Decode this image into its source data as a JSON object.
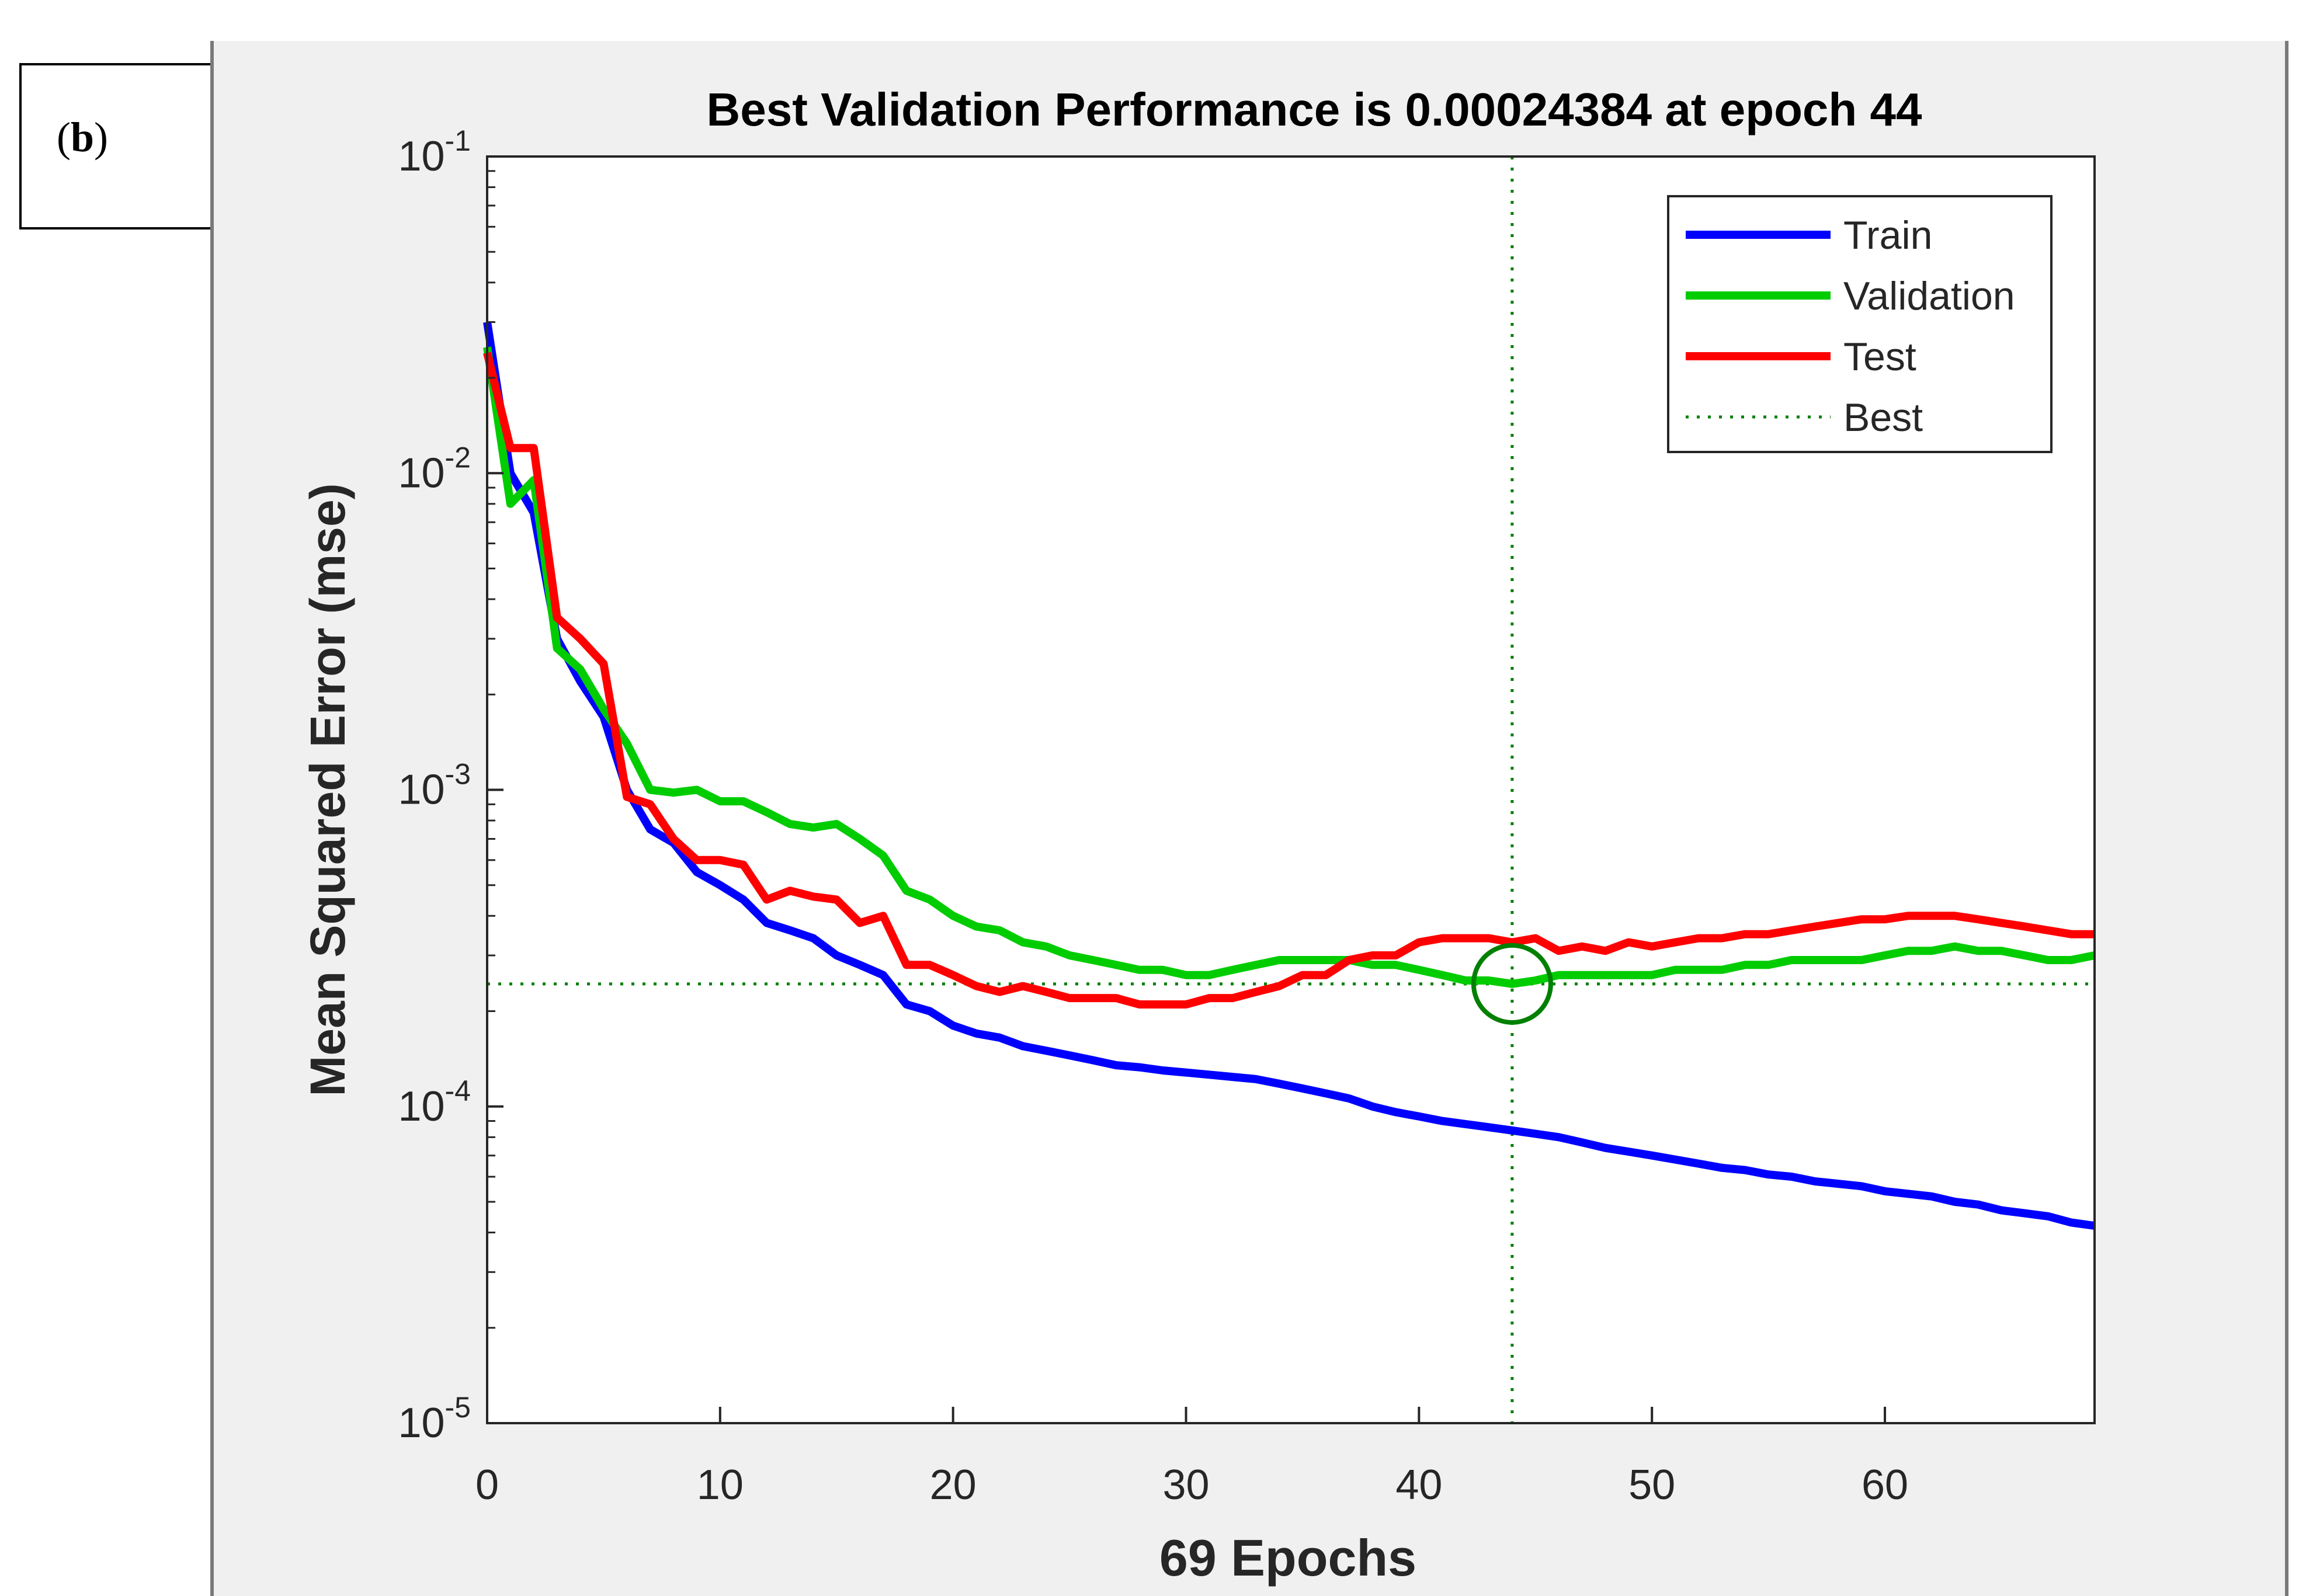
{
  "panel_label": {
    "letter": "b"
  },
  "colors": {
    "train": "#0000ff",
    "validation": "#00cc00",
    "test": "#ff0000",
    "best": "#008000",
    "background": "#f0f0f0"
  },
  "chart_data": {
    "type": "line",
    "title": "Best Validation Performance is 0.00024384 at epoch 44",
    "xlabel": "69 Epochs",
    "ylabel": "Mean Squared Error  (mse)",
    "xlim": [
      0,
      69
    ],
    "ylim": [
      1e-05,
      0.1
    ],
    "yscale": "log",
    "xticks": [
      0,
      10,
      20,
      30,
      40,
      50,
      60
    ],
    "yticks": [
      {
        "value": 1e-05,
        "base": "10",
        "exp": "-5"
      },
      {
        "value": 0.0001,
        "base": "10",
        "exp": "-4"
      },
      {
        "value": 0.001,
        "base": "10",
        "exp": "-3"
      },
      {
        "value": 0.01,
        "base": "10",
        "exp": "-2"
      },
      {
        "value": 0.1,
        "base": "10",
        "exp": "-1"
      }
    ],
    "legend_position": "top-right",
    "best": {
      "epoch": 44,
      "value": 0.00024384,
      "label": "Best"
    },
    "series": [
      {
        "name": "Train",
        "color": "#0000ff",
        "style": "solid",
        "x": [
          0,
          1,
          2,
          3,
          4,
          5,
          6,
          7,
          8,
          9,
          10,
          11,
          12,
          13,
          14,
          15,
          16,
          17,
          18,
          19,
          20,
          21,
          22,
          23,
          24,
          25,
          26,
          27,
          28,
          29,
          30,
          31,
          32,
          33,
          34,
          35,
          36,
          37,
          38,
          39,
          40,
          41,
          42,
          43,
          44,
          45,
          46,
          47,
          48,
          49,
          50,
          51,
          52,
          53,
          54,
          55,
          56,
          57,
          58,
          59,
          60,
          61,
          62,
          63,
          64,
          65,
          66,
          67,
          68,
          69
        ],
        "y": [
          0.03,
          0.01,
          0.0075,
          0.003,
          0.0022,
          0.0017,
          0.001,
          0.00075,
          0.00068,
          0.00055,
          0.0005,
          0.00045,
          0.00038,
          0.00036,
          0.00034,
          0.0003,
          0.00028,
          0.00026,
          0.00021,
          0.0002,
          0.00018,
          0.00017,
          0.000165,
          0.000155,
          0.00015,
          0.000145,
          0.00014,
          0.000135,
          0.000133,
          0.00013,
          0.000128,
          0.000126,
          0.000124,
          0.000122,
          0.000118,
          0.000114,
          0.00011,
          0.000106,
          0.0001,
          9.6e-05,
          9.3e-05,
          9e-05,
          8.8e-05,
          8.6e-05,
          8.4e-05,
          8.2e-05,
          8e-05,
          7.7e-05,
          7.4e-05,
          7.2e-05,
          7e-05,
          6.8e-05,
          6.6e-05,
          6.4e-05,
          6.3e-05,
          6.1e-05,
          6e-05,
          5.8e-05,
          5.7e-05,
          5.6e-05,
          5.4e-05,
          5.3e-05,
          5.2e-05,
          5e-05,
          4.9e-05,
          4.7e-05,
          4.6e-05,
          4.5e-05,
          4.3e-05,
          4.2e-05
        ]
      },
      {
        "name": "Validation",
        "color": "#00cc00",
        "style": "solid",
        "x": [
          0,
          1,
          2,
          3,
          4,
          5,
          6,
          7,
          8,
          9,
          10,
          11,
          12,
          13,
          14,
          15,
          16,
          17,
          18,
          19,
          20,
          21,
          22,
          23,
          24,
          25,
          26,
          27,
          28,
          29,
          30,
          31,
          32,
          33,
          34,
          35,
          36,
          37,
          38,
          39,
          40,
          41,
          42,
          43,
          44,
          45,
          46,
          47,
          48,
          49,
          50,
          51,
          52,
          53,
          54,
          55,
          56,
          57,
          58,
          59,
          60,
          61,
          62,
          63,
          64,
          65,
          66,
          67,
          68,
          69
        ],
        "y": [
          0.025,
          0.008,
          0.0095,
          0.0028,
          0.0024,
          0.0018,
          0.0014,
          0.001,
          0.00098,
          0.001,
          0.00092,
          0.00092,
          0.00085,
          0.00078,
          0.00076,
          0.00078,
          0.0007,
          0.00062,
          0.00048,
          0.00045,
          0.0004,
          0.00037,
          0.00036,
          0.00033,
          0.00032,
          0.0003,
          0.00029,
          0.00028,
          0.00027,
          0.00027,
          0.00026,
          0.00026,
          0.00027,
          0.00028,
          0.00029,
          0.00029,
          0.00029,
          0.00029,
          0.00028,
          0.00028,
          0.00027,
          0.00026,
          0.00025,
          0.00025,
          0.00024384,
          0.00025,
          0.00026,
          0.00026,
          0.00026,
          0.00026,
          0.00026,
          0.00027,
          0.00027,
          0.00027,
          0.00028,
          0.00028,
          0.00029,
          0.00029,
          0.00029,
          0.00029,
          0.0003,
          0.00031,
          0.00031,
          0.00032,
          0.00031,
          0.00031,
          0.0003,
          0.00029,
          0.00029,
          0.0003
        ]
      },
      {
        "name": "Test",
        "color": "#ff0000",
        "style": "solid",
        "x": [
          0,
          1,
          2,
          3,
          4,
          5,
          6,
          7,
          8,
          9,
          10,
          11,
          12,
          13,
          14,
          15,
          16,
          17,
          18,
          19,
          20,
          21,
          22,
          23,
          24,
          25,
          26,
          27,
          28,
          29,
          30,
          31,
          32,
          33,
          34,
          35,
          36,
          37,
          38,
          39,
          40,
          41,
          42,
          43,
          44,
          45,
          46,
          47,
          48,
          49,
          50,
          51,
          52,
          53,
          54,
          55,
          56,
          57,
          58,
          59,
          60,
          61,
          62,
          63,
          64,
          65,
          66,
          67,
          68,
          69
        ],
        "y": [
          0.024,
          0.012,
          0.012,
          0.0035,
          0.003,
          0.0025,
          0.00095,
          0.0009,
          0.0007,
          0.0006,
          0.0006,
          0.00058,
          0.00045,
          0.00048,
          0.00046,
          0.00045,
          0.00038,
          0.0004,
          0.00028,
          0.00028,
          0.00026,
          0.00024,
          0.00023,
          0.00024,
          0.00023,
          0.00022,
          0.00022,
          0.00022,
          0.00021,
          0.00021,
          0.00021,
          0.00022,
          0.00022,
          0.00023,
          0.00024,
          0.00026,
          0.00026,
          0.00029,
          0.0003,
          0.0003,
          0.00033,
          0.00034,
          0.00034,
          0.00034,
          0.00033,
          0.00034,
          0.00031,
          0.00032,
          0.00031,
          0.00033,
          0.00032,
          0.00033,
          0.00034,
          0.00034,
          0.00035,
          0.00035,
          0.00036,
          0.00037,
          0.00038,
          0.00039,
          0.00039,
          0.0004,
          0.0004,
          0.0004,
          0.00039,
          0.00038,
          0.00037,
          0.00036,
          0.00035,
          0.00035
        ]
      }
    ]
  }
}
